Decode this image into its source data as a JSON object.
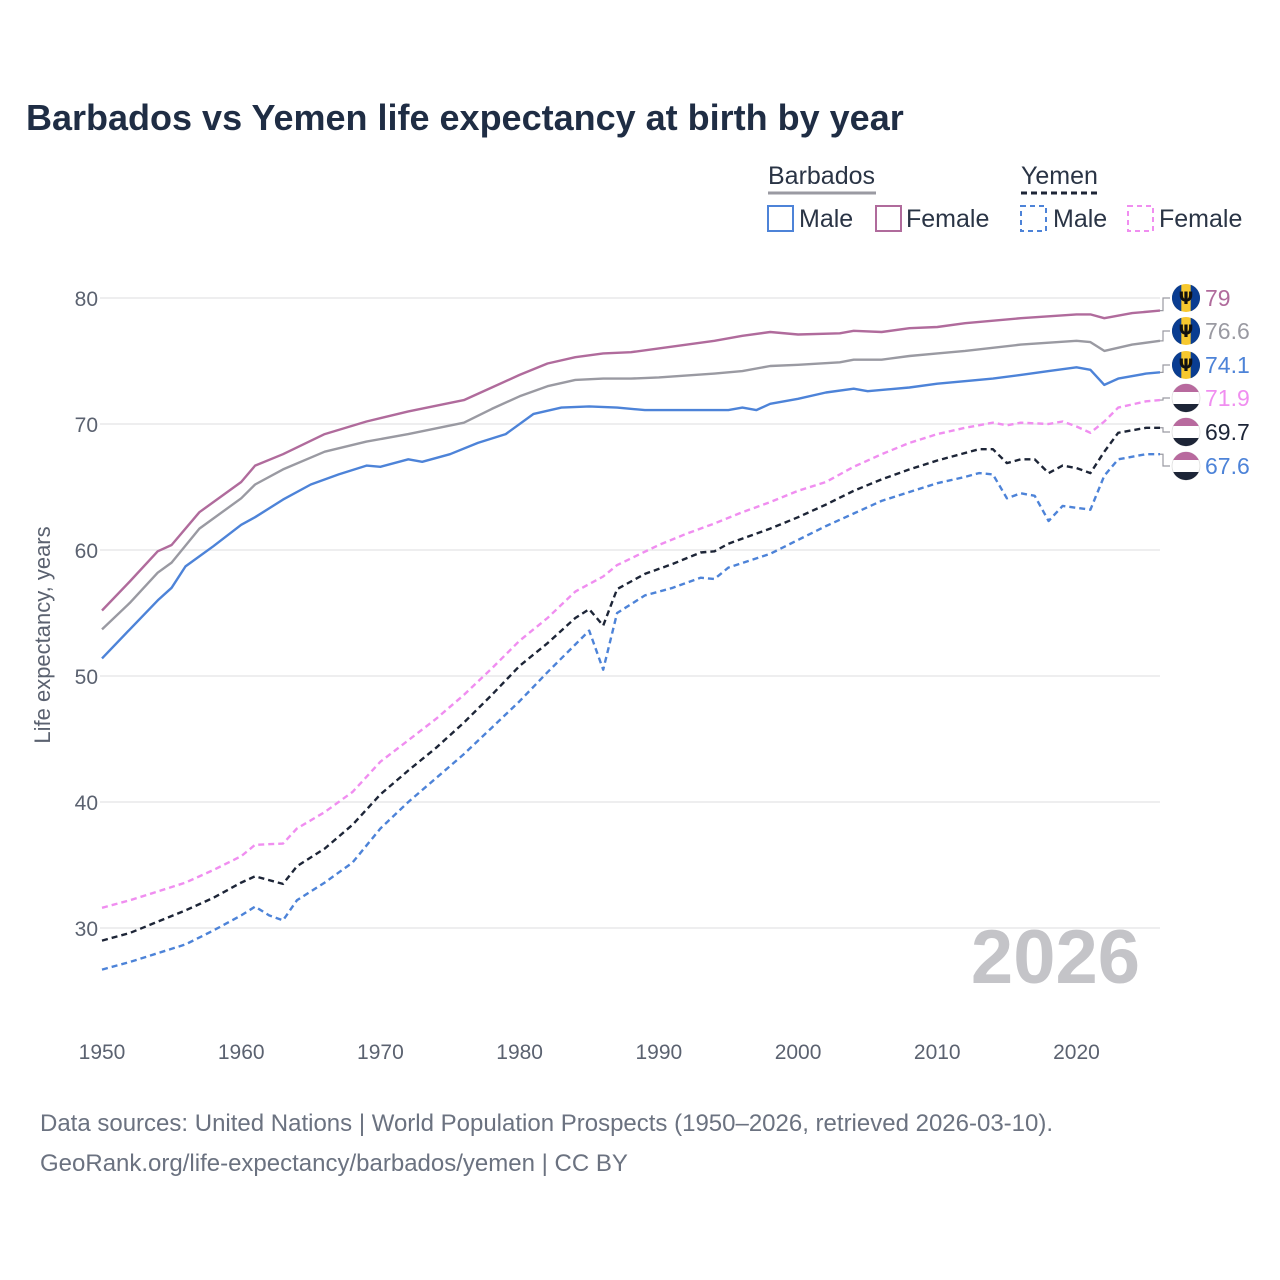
{
  "chart_data": {
    "type": "line",
    "title": "Barbados vs Yemen life expectancy at birth by year",
    "ylabel": "Life expectancy, years",
    "xlabel": "",
    "xlim": [
      1950,
      2026
    ],
    "ylim": [
      22,
      86
    ],
    "yticks": [
      30,
      40,
      50,
      60,
      70,
      80
    ],
    "xticks": [
      1950,
      1960,
      1970,
      1980,
      1990,
      2000,
      2010,
      2020
    ],
    "legend": {
      "position": "top-right",
      "groups": [
        {
          "name": "Barbados",
          "items": [
            "Male",
            "Female"
          ]
        },
        {
          "name": "Yemen",
          "items": [
            "Male",
            "Female"
          ]
        }
      ]
    },
    "current_year_label": "2026",
    "colors": {
      "barbados_total": "#9a9aa2",
      "barbados_male": "#4d83d8",
      "barbados_female": "#b06b9c",
      "yemen_total": "#1d2537",
      "yemen_male": "#4d83d8",
      "yemen_female": "#f08ef0"
    },
    "series": [
      {
        "key": "barbados_female",
        "name": "Barbados Female",
        "dashed": false,
        "end_label": "79",
        "points": [
          [
            1950,
            55.2
          ],
          [
            1952,
            57.5
          ],
          [
            1954,
            59.9
          ],
          [
            1955,
            60.4
          ],
          [
            1957,
            63.0
          ],
          [
            1960,
            65.4
          ],
          [
            1961,
            66.7
          ],
          [
            1963,
            67.6
          ],
          [
            1966,
            69.2
          ],
          [
            1969,
            70.2
          ],
          [
            1972,
            71.0
          ],
          [
            1976,
            71.9
          ],
          [
            1978,
            72.9
          ],
          [
            1980,
            73.9
          ],
          [
            1982,
            74.8
          ],
          [
            1984,
            75.3
          ],
          [
            1986,
            75.6
          ],
          [
            1988,
            75.7
          ],
          [
            1990,
            76.0
          ],
          [
            1994,
            76.6
          ],
          [
            1996,
            77.0
          ],
          [
            1998,
            77.3
          ],
          [
            2000,
            77.1
          ],
          [
            2003,
            77.2
          ],
          [
            2004,
            77.4
          ],
          [
            2006,
            77.3
          ],
          [
            2008,
            77.6
          ],
          [
            2010,
            77.7
          ],
          [
            2012,
            78.0
          ],
          [
            2016,
            78.4
          ],
          [
            2020,
            78.7
          ],
          [
            2021,
            78.7
          ],
          [
            2022,
            78.4
          ],
          [
            2024,
            78.8
          ],
          [
            2026,
            79.0
          ]
        ]
      },
      {
        "key": "barbados_total",
        "name": "Barbados",
        "dashed": false,
        "end_label": "76.6",
        "points": [
          [
            1950,
            53.7
          ],
          [
            1952,
            55.8
          ],
          [
            1954,
            58.2
          ],
          [
            1955,
            59.0
          ],
          [
            1957,
            61.7
          ],
          [
            1960,
            64.1
          ],
          [
            1961,
            65.2
          ],
          [
            1963,
            66.4
          ],
          [
            1966,
            67.8
          ],
          [
            1969,
            68.6
          ],
          [
            1972,
            69.2
          ],
          [
            1976,
            70.1
          ],
          [
            1978,
            71.2
          ],
          [
            1980,
            72.2
          ],
          [
            1982,
            73.0
          ],
          [
            1984,
            73.5
          ],
          [
            1986,
            73.6
          ],
          [
            1988,
            73.6
          ],
          [
            1990,
            73.7
          ],
          [
            1994,
            74.0
          ],
          [
            1996,
            74.2
          ],
          [
            1998,
            74.6
          ],
          [
            2000,
            74.7
          ],
          [
            2003,
            74.9
          ],
          [
            2004,
            75.1
          ],
          [
            2006,
            75.1
          ],
          [
            2008,
            75.4
          ],
          [
            2010,
            75.6
          ],
          [
            2012,
            75.8
          ],
          [
            2016,
            76.3
          ],
          [
            2020,
            76.6
          ],
          [
            2021,
            76.5
          ],
          [
            2022,
            75.8
          ],
          [
            2024,
            76.3
          ],
          [
            2026,
            76.6
          ]
        ]
      },
      {
        "key": "barbados_male",
        "name": "Barbados Male",
        "dashed": false,
        "end_label": "74.1",
        "points": [
          [
            1950,
            51.4
          ],
          [
            1952,
            53.7
          ],
          [
            1954,
            56.0
          ],
          [
            1955,
            57.0
          ],
          [
            1956,
            58.7
          ],
          [
            1958,
            60.3
          ],
          [
            1960,
            62.0
          ],
          [
            1961,
            62.6
          ],
          [
            1963,
            64.0
          ],
          [
            1965,
            65.2
          ],
          [
            1967,
            66.0
          ],
          [
            1969,
            66.7
          ],
          [
            1970,
            66.6
          ],
          [
            1972,
            67.2
          ],
          [
            1973,
            67.0
          ],
          [
            1975,
            67.6
          ],
          [
            1977,
            68.5
          ],
          [
            1979,
            69.2
          ],
          [
            1981,
            70.8
          ],
          [
            1983,
            71.3
          ],
          [
            1985,
            71.4
          ],
          [
            1987,
            71.3
          ],
          [
            1989,
            71.1
          ],
          [
            1991,
            71.1
          ],
          [
            1993,
            71.1
          ],
          [
            1995,
            71.1
          ],
          [
            1996,
            71.3
          ],
          [
            1997,
            71.1
          ],
          [
            1998,
            71.6
          ],
          [
            2000,
            72.0
          ],
          [
            2002,
            72.5
          ],
          [
            2004,
            72.8
          ],
          [
            2005,
            72.6
          ],
          [
            2008,
            72.9
          ],
          [
            2010,
            73.2
          ],
          [
            2014,
            73.6
          ],
          [
            2016,
            73.9
          ],
          [
            2018,
            74.2
          ],
          [
            2020,
            74.5
          ],
          [
            2021,
            74.3
          ],
          [
            2022,
            73.1
          ],
          [
            2023,
            73.6
          ],
          [
            2025,
            74.0
          ],
          [
            2026,
            74.1
          ]
        ]
      },
      {
        "key": "yemen_female",
        "name": "Yemen Female",
        "dashed": true,
        "end_label": "71.9",
        "points": [
          [
            1950,
            31.6
          ],
          [
            1952,
            32.2
          ],
          [
            1954,
            32.9
          ],
          [
            1956,
            33.6
          ],
          [
            1958,
            34.6
          ],
          [
            1960,
            35.7
          ],
          [
            1961,
            36.6
          ],
          [
            1963,
            36.7
          ],
          [
            1964,
            37.9
          ],
          [
            1966,
            39.2
          ],
          [
            1968,
            40.8
          ],
          [
            1970,
            43.2
          ],
          [
            1972,
            44.9
          ],
          [
            1974,
            46.6
          ],
          [
            1976,
            48.5
          ],
          [
            1978,
            50.6
          ],
          [
            1980,
            52.8
          ],
          [
            1982,
            54.6
          ],
          [
            1984,
            56.7
          ],
          [
            1986,
            57.9
          ],
          [
            1987,
            58.8
          ],
          [
            1990,
            60.4
          ],
          [
            1992,
            61.3
          ],
          [
            1994,
            62.1
          ],
          [
            1996,
            63.0
          ],
          [
            1998,
            63.8
          ],
          [
            2000,
            64.7
          ],
          [
            2002,
            65.4
          ],
          [
            2004,
            66.6
          ],
          [
            2006,
            67.6
          ],
          [
            2008,
            68.5
          ],
          [
            2010,
            69.2
          ],
          [
            2012,
            69.7
          ],
          [
            2014,
            70.1
          ],
          [
            2015,
            69.9
          ],
          [
            2016,
            70.1
          ],
          [
            2018,
            70.0
          ],
          [
            2019,
            70.2
          ],
          [
            2020,
            69.8
          ],
          [
            2021,
            69.3
          ],
          [
            2022,
            70.2
          ],
          [
            2023,
            71.3
          ],
          [
            2025,
            71.8
          ],
          [
            2026,
            71.9
          ]
        ]
      },
      {
        "key": "yemen_total",
        "name": "Yemen",
        "dashed": true,
        "end_label": "69.7",
        "points": [
          [
            1950,
            29.0
          ],
          [
            1952,
            29.6
          ],
          [
            1954,
            30.5
          ],
          [
            1956,
            31.4
          ],
          [
            1958,
            32.4
          ],
          [
            1960,
            33.6
          ],
          [
            1961,
            34.1
          ],
          [
            1963,
            33.5
          ],
          [
            1964,
            34.9
          ],
          [
            1966,
            36.3
          ],
          [
            1968,
            38.2
          ],
          [
            1970,
            40.6
          ],
          [
            1972,
            42.5
          ],
          [
            1974,
            44.3
          ],
          [
            1976,
            46.3
          ],
          [
            1978,
            48.5
          ],
          [
            1980,
            50.8
          ],
          [
            1982,
            52.6
          ],
          [
            1984,
            54.6
          ],
          [
            1985,
            55.3
          ],
          [
            1986,
            54.0
          ],
          [
            1987,
            56.9
          ],
          [
            1989,
            58.1
          ],
          [
            1991,
            58.9
          ],
          [
            1993,
            59.8
          ],
          [
            1994,
            59.9
          ],
          [
            1995,
            60.5
          ],
          [
            1998,
            61.7
          ],
          [
            2000,
            62.6
          ],
          [
            2002,
            63.6
          ],
          [
            2004,
            64.7
          ],
          [
            2006,
            65.6
          ],
          [
            2008,
            66.4
          ],
          [
            2010,
            67.1
          ],
          [
            2013,
            68.0
          ],
          [
            2014,
            68.0
          ],
          [
            2015,
            66.9
          ],
          [
            2016,
            67.2
          ],
          [
            2017,
            67.2
          ],
          [
            2018,
            66.1
          ],
          [
            2019,
            66.7
          ],
          [
            2020,
            66.5
          ],
          [
            2021,
            66.1
          ],
          [
            2022,
            67.8
          ],
          [
            2023,
            69.3
          ],
          [
            2025,
            69.7
          ],
          [
            2026,
            69.7
          ]
        ]
      },
      {
        "key": "yemen_male",
        "name": "Yemen Male",
        "dashed": true,
        "end_label": "67.6",
        "points": [
          [
            1950,
            26.7
          ],
          [
            1952,
            27.3
          ],
          [
            1954,
            28.0
          ],
          [
            1956,
            28.7
          ],
          [
            1958,
            29.8
          ],
          [
            1960,
            31.0
          ],
          [
            1961,
            31.7
          ],
          [
            1962,
            31.0
          ],
          [
            1963,
            30.6
          ],
          [
            1964,
            32.2
          ],
          [
            1966,
            33.6
          ],
          [
            1968,
            35.2
          ],
          [
            1970,
            37.9
          ],
          [
            1972,
            40.0
          ],
          [
            1974,
            41.9
          ],
          [
            1976,
            43.8
          ],
          [
            1978,
            45.9
          ],
          [
            1980,
            48.0
          ],
          [
            1982,
            50.3
          ],
          [
            1984,
            52.5
          ],
          [
            1985,
            53.6
          ],
          [
            1986,
            50.5
          ],
          [
            1987,
            55.0
          ],
          [
            1989,
            56.4
          ],
          [
            1991,
            57.0
          ],
          [
            1993,
            57.8
          ],
          [
            1994,
            57.7
          ],
          [
            1995,
            58.6
          ],
          [
            1998,
            59.7
          ],
          [
            2000,
            60.8
          ],
          [
            2002,
            61.9
          ],
          [
            2004,
            62.9
          ],
          [
            2006,
            63.9
          ],
          [
            2008,
            64.6
          ],
          [
            2010,
            65.3
          ],
          [
            2012,
            65.8
          ],
          [
            2013,
            66.1
          ],
          [
            2014,
            66.0
          ],
          [
            2015,
            64.1
          ],
          [
            2016,
            64.5
          ],
          [
            2017,
            64.3
          ],
          [
            2018,
            62.3
          ],
          [
            2019,
            63.5
          ],
          [
            2021,
            63.2
          ],
          [
            2022,
            65.9
          ],
          [
            2023,
            67.2
          ],
          [
            2025,
            67.6
          ],
          [
            2026,
            67.6
          ]
        ]
      }
    ]
  },
  "source_lines": [
    "Data sources: United Nations | World Population Prospects (1950–2026, retrieved 2026-03-10).",
    "GeoRank.org/life-expectancy/barbados/yemen | CC BY"
  ]
}
